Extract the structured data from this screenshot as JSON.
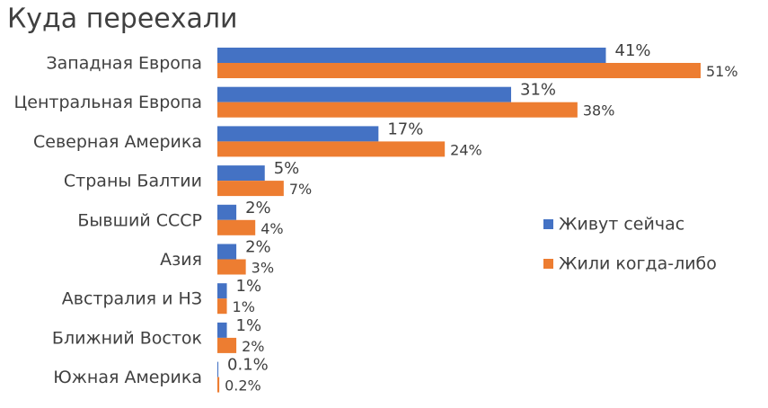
{
  "chart_data": {
    "type": "bar",
    "orientation": "horizontal",
    "title": "Куда переехали",
    "categories": [
      "Западная Европа",
      "Центральная Европа",
      "Северная Америка",
      "Страны Балтии",
      "Бывший СССР",
      "Азия",
      "Австралия и НЗ",
      "Ближний Восток",
      "Южная Америка"
    ],
    "series": [
      {
        "name": "Живут сейчас",
        "color": "#4472c4",
        "values": [
          41,
          31,
          17,
          5,
          2,
          2,
          1,
          1,
          0.1
        ],
        "value_labels": [
          "41%",
          "31%",
          "17%",
          "5%",
          "2%",
          "2%",
          "1%",
          "1%",
          "0.1%"
        ]
      },
      {
        "name": "Жили когда-либо",
        "color": "#ed7d31",
        "values": [
          51,
          38,
          24,
          7,
          4,
          3,
          1,
          2,
          0.2
        ],
        "value_labels": [
          "51%",
          "38%",
          "24%",
          "7%",
          "4%",
          "3%",
          "1%",
          "2%",
          "0.2%"
        ]
      }
    ]
  }
}
